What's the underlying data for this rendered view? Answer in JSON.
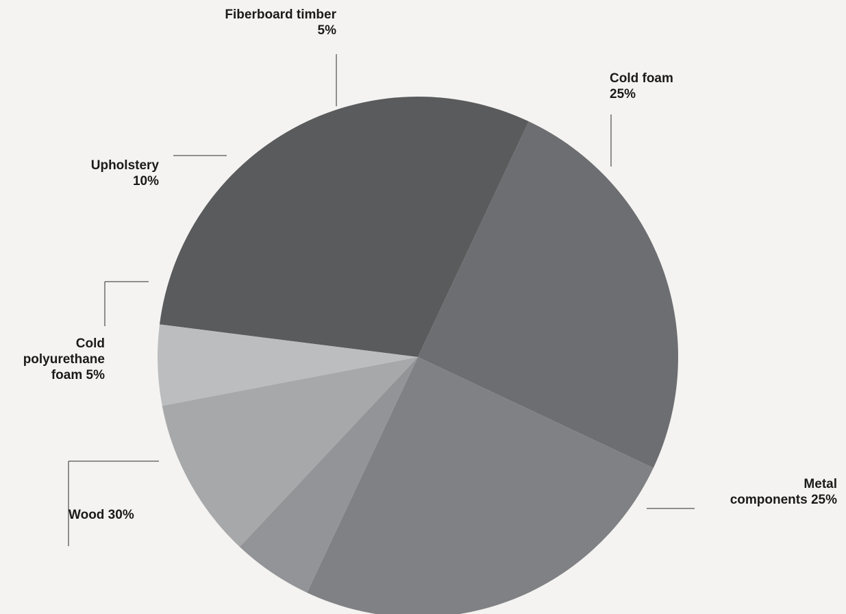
{
  "chart_data": {
    "type": "pie",
    "title": "",
    "slices": [
      {
        "key": "wood",
        "label_lines": [
          "Wood 30%"
        ],
        "value": 30,
        "color": "#5a5b5d"
      },
      {
        "key": "metal",
        "label_lines": [
          "Metal",
          "components 25%"
        ],
        "value": 25,
        "color": "#6d6e71"
      },
      {
        "key": "cold_foam",
        "label_lines": [
          "Cold foam",
          "25%"
        ],
        "value": 25,
        "color": "#808184"
      },
      {
        "key": "fiberboard",
        "label_lines": [
          "Fiberboard timber",
          "5%"
        ],
        "value": 5,
        "color": "#939497"
      },
      {
        "key": "upholstery",
        "label_lines": [
          "Upholstery",
          "10%"
        ],
        "value": 10,
        "color": "#a7a8aa"
      },
      {
        "key": "cold_pu_foam",
        "label_lines": [
          "Cold",
          "polyurethane",
          "foam 5%"
        ],
        "value": 5,
        "color": "#bcbdbf"
      }
    ]
  }
}
